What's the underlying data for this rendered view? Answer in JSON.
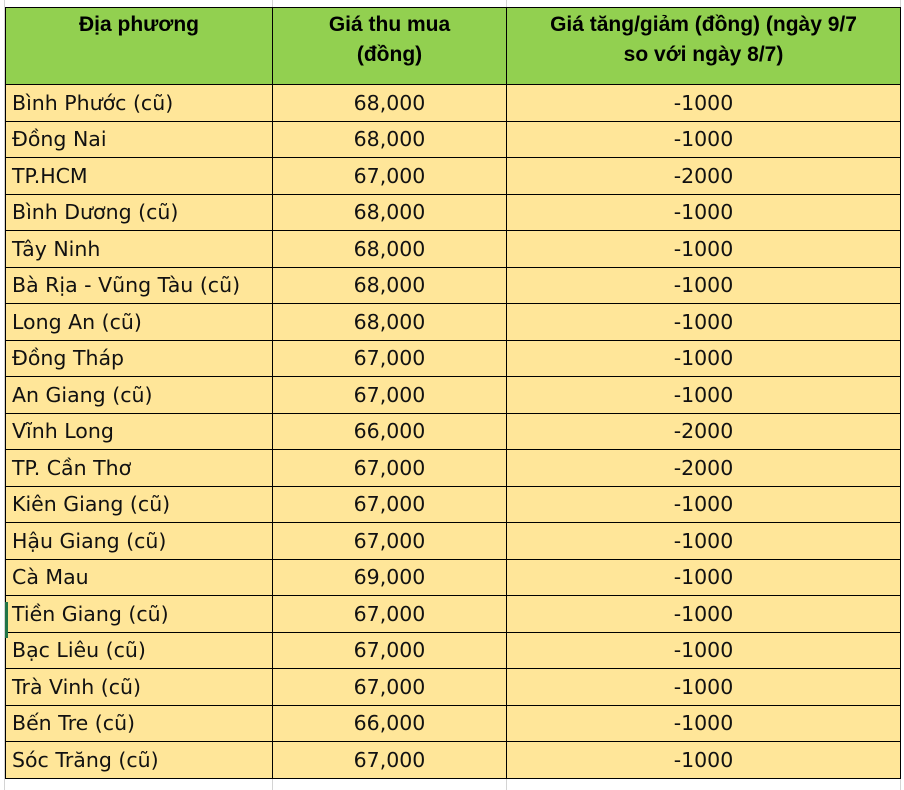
{
  "headers": {
    "location": "Địa phương",
    "price": "Giá thu mua (đồng)",
    "change": "Giá tăng/giảm (đồng) (ngày 9/7 so với ngày 8/7)"
  },
  "colors": {
    "header_bg": "#92d050",
    "row_bg": "#ffe699"
  },
  "rows": [
    {
      "location": "Bình Phước (cũ)",
      "price": "68,000",
      "change": "-1000"
    },
    {
      "location": "Đồng Nai",
      "price": "68,000",
      "change": "-1000"
    },
    {
      "location": "TP.HCM",
      "price": "67,000",
      "change": "-2000"
    },
    {
      "location": "Bình Dương (cũ)",
      "price": "68,000",
      "change": "-1000"
    },
    {
      "location": "Tây Ninh",
      "price": "68,000",
      "change": "-1000"
    },
    {
      "location": "Bà Rịa - Vũng Tàu (cũ)",
      "price": "68,000",
      "change": "-1000"
    },
    {
      "location": "Long An (cũ)",
      "price": "68,000",
      "change": "-1000"
    },
    {
      "location": "Đồng Tháp",
      "price": "67,000",
      "change": "-1000"
    },
    {
      "location": "An Giang (cũ)",
      "price": "67,000",
      "change": "-1000"
    },
    {
      "location": "Vĩnh Long",
      "price": "66,000",
      "change": "-2000"
    },
    {
      "location": "TP. Cần Thơ",
      "price": "67,000",
      "change": "-2000"
    },
    {
      "location": "Kiên Giang (cũ)",
      "price": "67,000",
      "change": "-1000"
    },
    {
      "location": "Hậu Giang (cũ)",
      "price": "67,000",
      "change": "-1000"
    },
    {
      "location": "Cà Mau",
      "price": "69,000",
      "change": "-1000"
    },
    {
      "location": "Tiền Giang (cũ)",
      "price": "67,000",
      "change": "-1000"
    },
    {
      "location": "Bạc Liêu (cũ)",
      "price": "67,000",
      "change": "-1000"
    },
    {
      "location": "Trà Vinh (cũ)",
      "price": "67,000",
      "change": "-1000"
    },
    {
      "location": "Bến Tre (cũ)",
      "price": "66,000",
      "change": "-1000"
    },
    {
      "location": "Sóc Trăng (cũ)",
      "price": "67,000",
      "change": "-1000"
    }
  ]
}
